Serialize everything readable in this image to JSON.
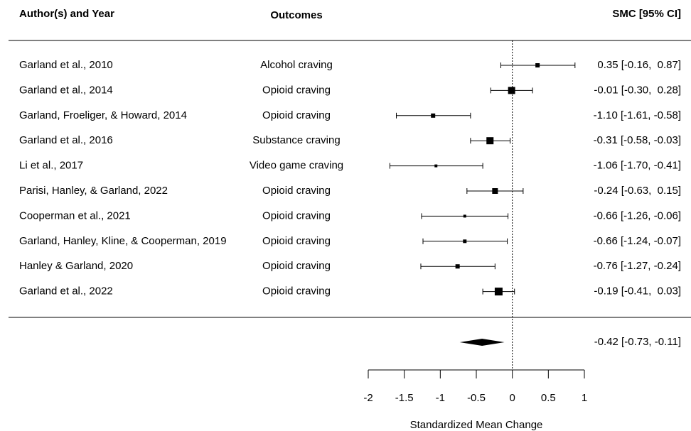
{
  "chart_data": {
    "type": "forest",
    "columns": [
      "Author(s) and Year",
      "Outcomes",
      "SMC [95% CI]"
    ],
    "categories": [
      "Garland et al., 2010",
      "Garland et al., 2014",
      "Garland, Froeliger, & Howard, 2014",
      "Garland et al., 2016",
      "Li et al., 2017",
      "Parisi, Hanley, & Garland, 2022",
      "Cooperman et al., 2021",
      "Garland, Hanley, Kline, & Cooperman, 2019",
      "Hanley & Garland, 2020",
      "Garland et al., 2022"
    ],
    "outcomes": [
      "Alcohol craving",
      "Opioid craving",
      "Opioid craving",
      "Substance craving",
      "Video game craving",
      "Opioid craving",
      "Opioid craving",
      "Opioid craving",
      "Opioid craving",
      "Opioid craving"
    ],
    "values": [
      0.35,
      -0.01,
      -1.1,
      -0.31,
      -1.06,
      -0.24,
      -0.66,
      -0.66,
      -0.76,
      -0.19
    ],
    "lower": [
      -0.16,
      -0.3,
      -1.61,
      -0.58,
      -1.7,
      -0.63,
      -1.26,
      -1.24,
      -1.27,
      -0.41
    ],
    "upper": [
      0.87,
      0.28,
      -0.58,
      -0.03,
      -0.41,
      0.15,
      -0.06,
      -0.07,
      -0.24,
      0.03
    ],
    "weights": [
      6,
      10,
      6,
      10,
      4,
      8,
      4,
      5,
      6,
      11
    ],
    "value_labels": [
      "0.35 [-0.16,  0.87]",
      "-0.01 [-0.30,  0.28]",
      "-1.10 [-1.61, -0.58]",
      "-0.31 [-0.58, -0.03]",
      "-1.06 [-1.70, -0.41]",
      "-0.24 [-0.63,  0.15]",
      "-0.66 [-1.26, -0.06]",
      "-0.66 [-1.24, -0.07]",
      "-0.76 [-1.27, -0.24]",
      "-0.19 [-0.41,  0.03]"
    ],
    "summary": {
      "value": -0.42,
      "lower": -0.73,
      "upper": -0.11,
      "value_label": "-0.42 [-0.73, -0.11]"
    },
    "reference_x": 0,
    "xlim": [
      -2,
      1
    ],
    "xticks": [
      -2,
      -1.5,
      -1,
      -0.5,
      0,
      0.5,
      1
    ],
    "xlabel": "Standardized Mean Change",
    "color": "#000000"
  }
}
